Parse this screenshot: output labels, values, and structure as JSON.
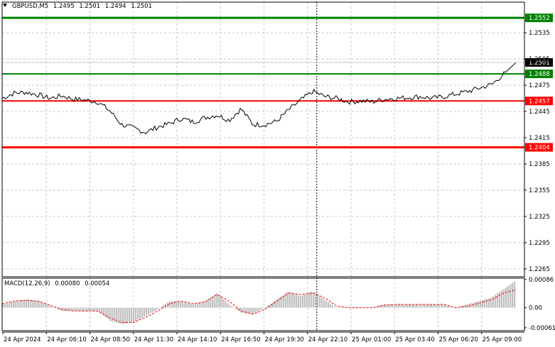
{
  "header": {
    "symbol_tf": "GBPUSD,M5",
    "open": "1.2495",
    "high": "1.2501",
    "low": "1.2494",
    "close": "1.2501"
  },
  "colors": {
    "background": "#ffffff",
    "grid": "#c8c8c8",
    "price_line": "#000000",
    "resistance": "#008000",
    "support": "#ff0000",
    "current_price_bg": "#000000",
    "histogram": "#c0c0c0",
    "signal": "#ff0000"
  },
  "chart_data": [
    {
      "type": "line",
      "title": "GBPUSD,M5",
      "y_axis_side": "right",
      "ylim": [
        1.2256,
        1.257
      ],
      "y_ticks": [
        "1.2265",
        "1.2295",
        "1.2325",
        "1.2355",
        "1.2385",
        "1.2415",
        "1.2445",
        "1.2475",
        "1.2505",
        "1.2535"
      ],
      "x_ticks": [
        "24 Apr 2024",
        "24 Apr 06:10",
        "24 Apr 08:50",
        "24 Apr 11:30",
        "24 Apr 14:10",
        "24 Apr 16:50",
        "24 Apr 19:30",
        "24 Apr 22:10",
        "25 Apr 01:00",
        "25 Apr 03:40",
        "25 Apr 06:20",
        "25 Apr 09:00"
      ],
      "grid": true,
      "series": [
        {
          "values": [
            1.246,
            1.2466,
            1.2467,
            1.2464,
            1.246,
            1.2463,
            1.2459,
            1.2458,
            1.2456,
            1.2446,
            1.243,
            1.2426,
            1.2421,
            1.2427,
            1.2431,
            1.2437,
            1.2433,
            1.2438,
            1.2441,
            1.2435,
            1.2448,
            1.243,
            1.243,
            1.2434,
            1.2447,
            1.2458,
            1.2468,
            1.2462,
            1.246,
            1.2456,
            1.2457,
            1.2456,
            1.2459,
            1.246,
            1.2461,
            1.2462,
            1.246,
            1.2462,
            1.2465,
            1.2468,
            1.2472,
            1.2476,
            1.2488,
            1.2501
          ]
        }
      ],
      "levels": [
        {
          "label": "1.2552",
          "value": 1.2552,
          "role": "resistance"
        },
        {
          "label": "1.2488",
          "value": 1.2488,
          "role": "resistance"
        },
        {
          "label": "1.2457",
          "value": 1.2457,
          "role": "support"
        },
        {
          "label": "1.2404",
          "value": 1.2404,
          "role": "support"
        }
      ],
      "current_price": {
        "label": "1.2501",
        "value": 1.2501
      }
    },
    {
      "type": "bar",
      "title": "MACD(12,26,9)",
      "macd_value": "0.00080",
      "signal_value": "0.00054",
      "ylim": [
        -0.0007,
        0.0009
      ],
      "y_ticks": [
        "0.00086",
        "0.00",
        "-0.00061"
      ],
      "series": [
        {
          "name": "MACD",
          "values": [
            0.0001,
            0.0002,
            0.00025,
            0.0002,
            5e-05,
            -0.0001,
            -0.0001,
            -0.0001,
            -0.0001,
            -0.0004,
            -0.0005,
            -0.00045,
            -0.00025,
            -5e-05,
            0.0002,
            0.0002,
            0.0001,
            0.0002,
            0.00045,
            0.0001,
            -0.00015,
            -0.0002,
            0.0,
            0.00025,
            0.0005,
            0.00035,
            0.0005,
            0.00025,
            0.0,
            0.0,
            0.0,
            0.0,
            0.0001,
            0.0001,
            0.0001,
            0.0001,
            0.0001,
            0.0001,
            0.0,
            0.0001,
            0.0002,
            0.0003,
            0.00055,
            0.0008
          ]
        },
        {
          "name": "Signal",
          "values": [
            0.00012,
            0.0002,
            0.00023,
            0.0002,
            8e-05,
            -5e-05,
            -0.0001,
            -0.0001,
            -0.0001,
            -0.0003,
            -0.00045,
            -0.00045,
            -0.0003,
            -0.0001,
            0.00012,
            0.0002,
            0.00012,
            0.00018,
            0.0004,
            0.0002,
            -0.0001,
            -0.0002,
            -5e-05,
            0.0002,
            0.00045,
            0.0004,
            0.00045,
            0.0003,
            5e-05,
            0.0,
            0.0,
            0.0,
            8e-05,
            0.0001,
            0.0001,
            0.0001,
            0.0001,
            0.0001,
            0.0,
            5e-05,
            0.00015,
            0.00025,
            0.00045,
            0.00054
          ]
        }
      ]
    }
  ]
}
